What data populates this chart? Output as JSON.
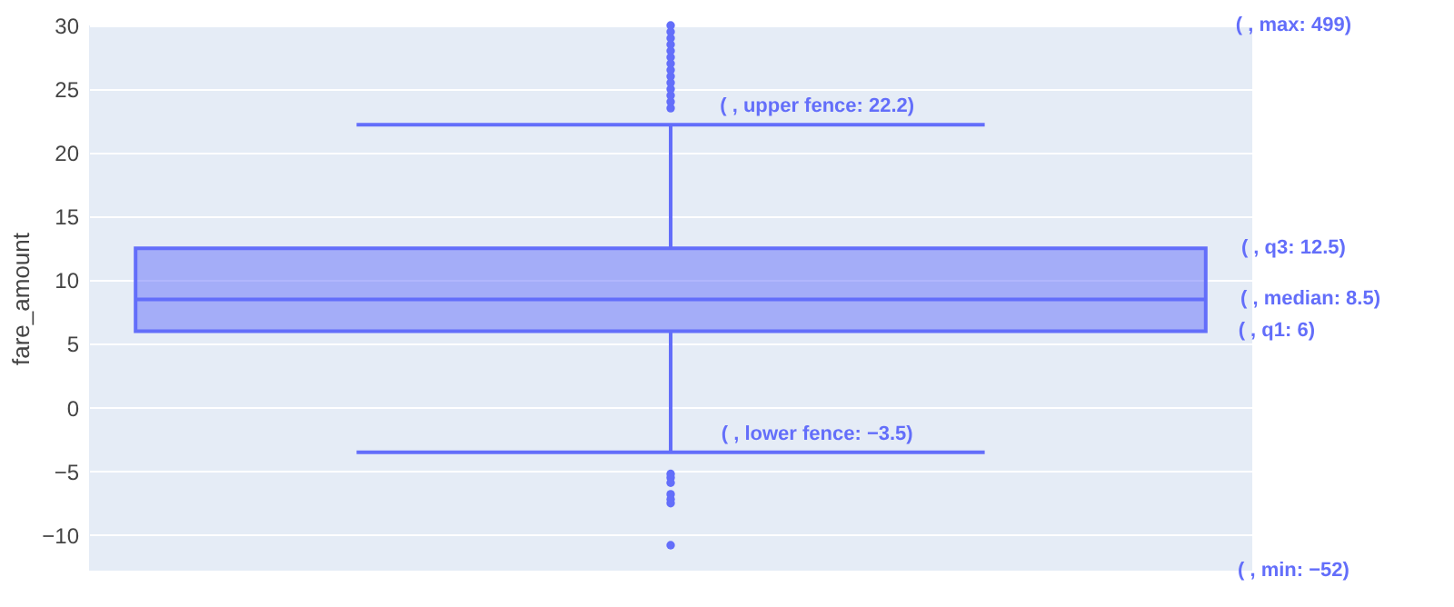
{
  "chart_data": {
    "type": "box",
    "ylabel": "fare_amount",
    "categories": [
      null
    ],
    "series": [
      {
        "color": "#636efa",
        "boxes": [
          {
            "low": -3.5,
            "q1": 6,
            "median": 8.5,
            "q3": 12.5,
            "high": 22.2,
            "outliers": [
              23.5,
              24,
              24.5,
              25,
              25.5,
              26,
              26.5,
              27,
              27.5,
              28,
              28.5,
              29,
              29.5,
              30,
              -5.2,
              -5.5,
              -5.9,
              -6.8,
              -7.2,
              -7.5,
              -10.8
            ]
          }
        ]
      }
    ],
    "ylim": [
      -12.8,
      30
    ],
    "yticks": [
      -10,
      -5,
      0,
      5,
      10,
      15,
      20,
      25,
      30
    ],
    "grid": "y",
    "tick_labels": "y",
    "annotations": [
      "( , max: 499)",
      {
        "text": "( , upper fence: 22.2)",
        "y": 22.2
      },
      "( , q3: 12.5)",
      "( , median: 8.5)",
      "( , q1: 6)",
      {
        "text": "( , lower fence: −3.5)",
        "y": -3.5
      },
      "( , min: −52)"
    ]
  }
}
